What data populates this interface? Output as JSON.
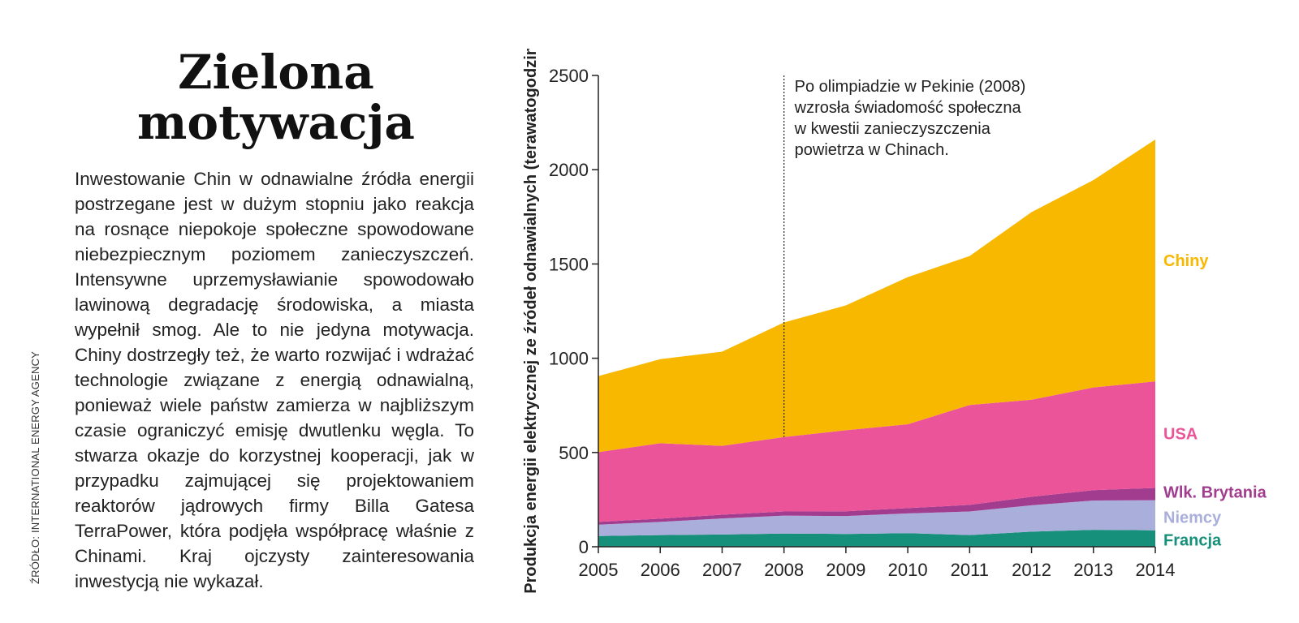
{
  "article": {
    "title": "Zielona motywacja",
    "source": "ŹRÓDŁO: INTERNATIONAL ENERGY AGENCY",
    "body_lead": "Inwestowanie Chin",
    "body": " w odnawialne źródła energii postrzegane jest w dużym stopniu jako reakcja na rosnące niepokoje społeczne spowodowane niebezpiecznym poziomem zanieczyszczeń. Intensywne uprzemysławianie spowodowało lawinową degradację środowiska, a miasta wypełnił smog. Ale to nie jedyna motywacja. Chiny dostrzegły też, że warto rozwijać i wdrażać technologie związane z energią odnawialną, ponieważ wiele państw zamierza w najbliższym czasie ograniczyć emisję dwutlenku węgla. To stwarza okazje do korzystnej kooperacji, jak w przypadku zajmującej się projektowaniem reaktorów jądrowych firmy Billa Gatesa TerraPower, która podjęła współpracę właśnie z Chinami. Kraj ojczysty zainteresowania inwestycją nie wykazał."
  },
  "chart_data": {
    "type": "area",
    "stacked": true,
    "ylabel": "Produkcja energii elektrycznej ze źródeł odnawialnych (terawatogodziny)",
    "x": [
      2005,
      2006,
      2007,
      2008,
      2009,
      2010,
      2011,
      2012,
      2013,
      2014
    ],
    "ylim": [
      0,
      2500
    ],
    "yticks": [
      0,
      500,
      1000,
      1500,
      2000,
      2500
    ],
    "series": [
      {
        "name": "Francja",
        "color": "#16907a",
        "values": [
          57,
          62,
          65,
          70,
          68,
          72,
          62,
          80,
          90,
          87
        ]
      },
      {
        "name": "Niemcy",
        "color": "#a9aedb",
        "values": [
          60,
          70,
          85,
          95,
          95,
          105,
          125,
          140,
          155,
          160
        ]
      },
      {
        "name": "Wlk. Brytania",
        "color": "#a13c8f",
        "values": [
          15,
          17,
          20,
          22,
          25,
          28,
          35,
          45,
          55,
          65
        ]
      },
      {
        "name": "USA",
        "color": "#ec5499",
        "values": [
          370,
          400,
          365,
          395,
          430,
          445,
          530,
          515,
          545,
          565
        ]
      },
      {
        "name": "Chiny",
        "color": "#f8b800",
        "values": [
          403,
          446,
          500,
          608,
          662,
          780,
          790,
          995,
          1100,
          1283
        ]
      }
    ],
    "annotation": {
      "x": 2008,
      "lines": [
        "Po olimpiadzie w Pekinie (2008)",
        "wzrosła świadomość społeczna",
        "w kwestii zanieczyszczenia",
        "powietrza w Chinach."
      ]
    },
    "grid": false,
    "legend": "inline-right"
  }
}
